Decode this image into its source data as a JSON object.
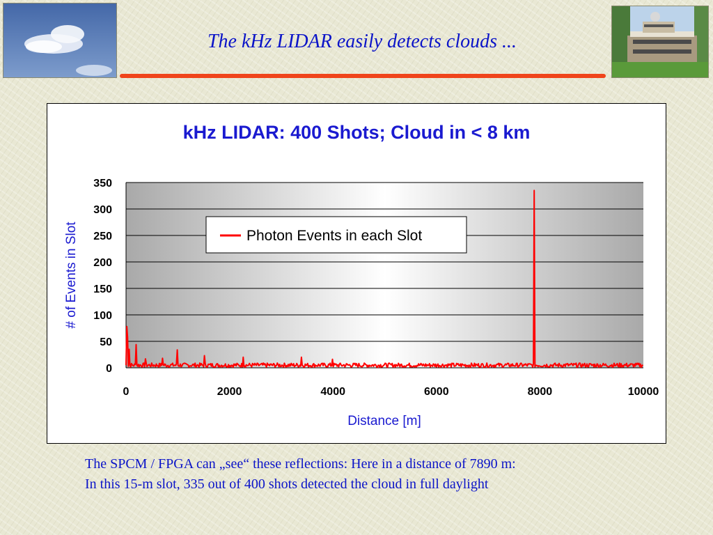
{
  "slide": {
    "title": "The kHz LIDAR easily detects clouds ...",
    "caption_line1": "The SPCM / FPGA can „see“ these reflections: Here in a distance of 7890 m:",
    "caption_line2": "In this 15-m slot, 335 out of 400 shots detected the cloud in full daylight"
  },
  "colors": {
    "title_text": "#0b14c8",
    "accent_rule": "#f0441b",
    "series_line": "#ff0000",
    "axis_label": "#1a1ad0"
  },
  "chart_data": {
    "type": "line",
    "title": "kHz LIDAR: 400 Shots; Cloud in < 8 km",
    "xlabel": "Distance [m]",
    "ylabel": "# of Events in Slot",
    "xlim": [
      0,
      10000
    ],
    "ylim": [
      0,
      350
    ],
    "x_ticks": [
      "0",
      "2000",
      "4000",
      "6000",
      "8000",
      "10000"
    ],
    "y_ticks": [
      "0",
      "50",
      "100",
      "150",
      "200",
      "250",
      "300",
      "350"
    ],
    "grid": "horizontal",
    "legend_position": "upper-center",
    "series": [
      {
        "name": "Photon Events in each Slot",
        "baseline": 5,
        "noise": 4,
        "peaks": [
          {
            "x": 15,
            "y": 78
          },
          {
            "x": 30,
            "y": 58
          },
          {
            "x": 60,
            "y": 35
          },
          {
            "x": 190,
            "y": 44
          },
          {
            "x": 380,
            "y": 17
          },
          {
            "x": 700,
            "y": 18
          },
          {
            "x": 990,
            "y": 34
          },
          {
            "x": 1520,
            "y": 23
          },
          {
            "x": 2270,
            "y": 20
          },
          {
            "x": 3390,
            "y": 20
          },
          {
            "x": 3990,
            "y": 16
          },
          {
            "x": 7890,
            "y": 335
          }
        ]
      }
    ]
  }
}
